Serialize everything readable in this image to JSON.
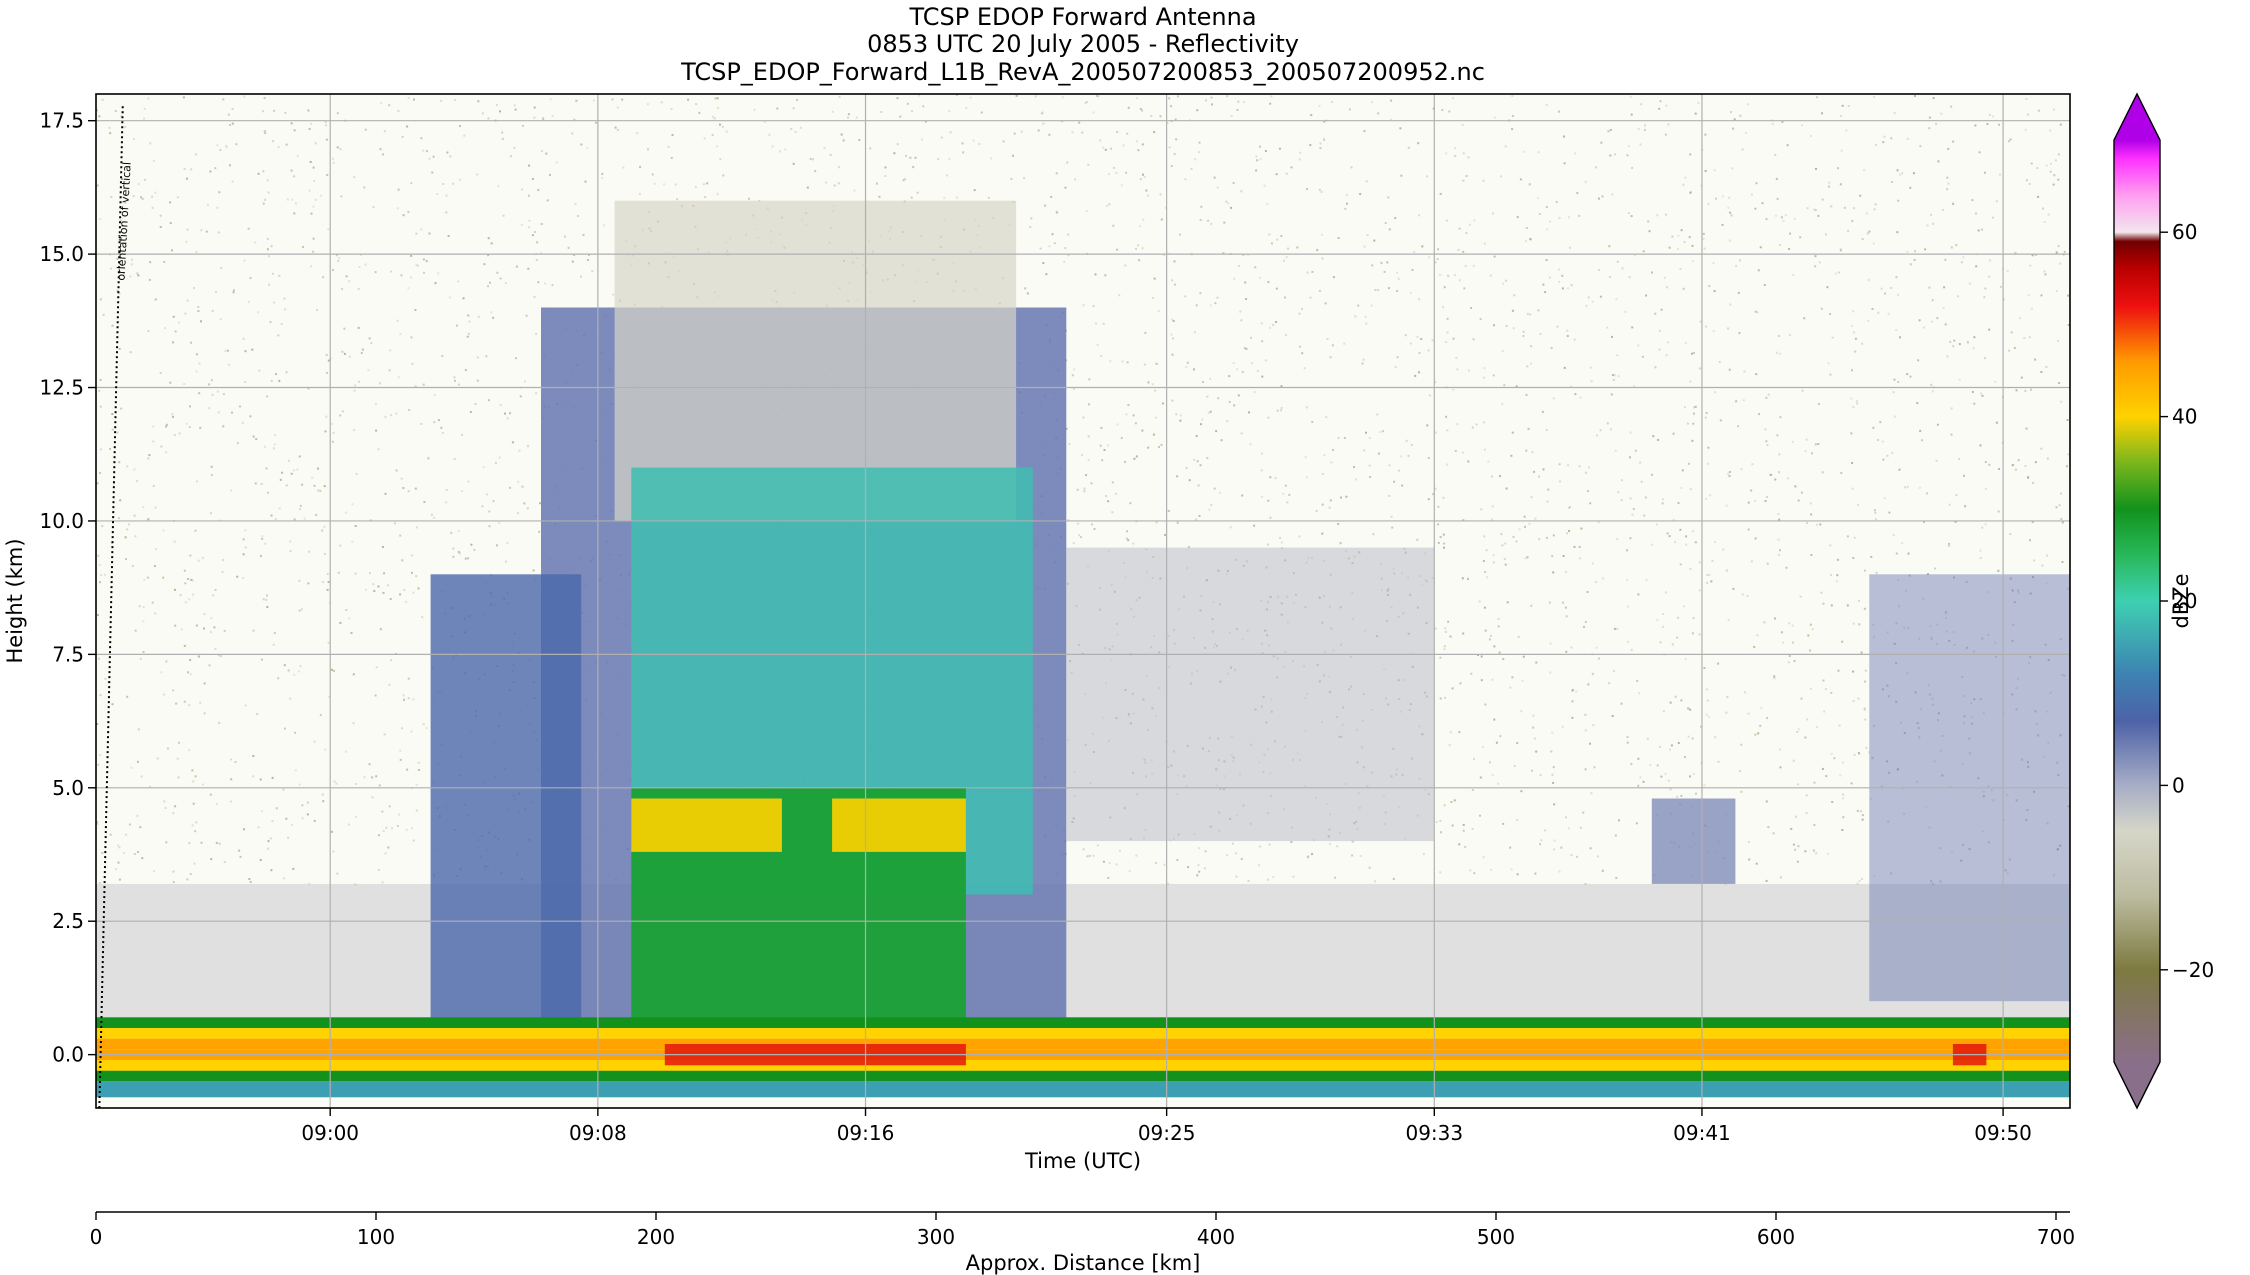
{
  "chart_data": {
    "type": "heatmap",
    "title": [
      "TCSP EDOP Forward Antenna",
      "0853 UTC 20 July 2005 - Reflectivity",
      "TCSP_EDOP_Forward_L1B_RevA_200507200853_200507200952.nc"
    ],
    "xlabel": "Time (UTC)",
    "ylabel": "Height (km)",
    "x_ticks": [
      "09:00",
      "09:08",
      "09:16",
      "09:25",
      "09:33",
      "09:41",
      "09:50"
    ],
    "x_tick_minutes": [
      7,
      15,
      23,
      32,
      40,
      48,
      57
    ],
    "x_range_minutes": [
      0,
      59
    ],
    "y_ticks": [
      0.0,
      2.5,
      5.0,
      7.5,
      10.0,
      12.5,
      15.0,
      17.5
    ],
    "y_tick_labels": [
      "0.0",
      "2.5",
      "5.0",
      "7.5",
      "10.0",
      "12.5",
      "15.0",
      "17.5"
    ],
    "ylim": [
      -1.0,
      18.0
    ],
    "grid": true,
    "annotation": "orientation of vertical",
    "colorbar": {
      "label": "dBZe",
      "ticks": [
        -20,
        0,
        20,
        40,
        60
      ],
      "tick_labels": [
        "−20",
        "0",
        "20",
        "40",
        "60"
      ],
      "range": [
        -30,
        70
      ],
      "extend": "both",
      "stops": [
        {
          "v": -30,
          "c": "#8a6f8a"
        },
        {
          "v": -20,
          "c": "#7d7a40"
        },
        {
          "v": -12,
          "c": "#bcbca0"
        },
        {
          "v": -5,
          "c": "#d6d6c8"
        },
        {
          "v": 0,
          "c": "#a6adc6"
        },
        {
          "v": 7,
          "c": "#4d62a8"
        },
        {
          "v": 12,
          "c": "#3d82b2"
        },
        {
          "v": 20,
          "c": "#3ed0b2"
        },
        {
          "v": 25,
          "c": "#28b85a"
        },
        {
          "v": 30,
          "c": "#12921c"
        },
        {
          "v": 35,
          "c": "#7ab61c"
        },
        {
          "v": 40,
          "c": "#ffd200"
        },
        {
          "v": 46,
          "c": "#ff9a00"
        },
        {
          "v": 52,
          "c": "#ee1010"
        },
        {
          "v": 56,
          "c": "#bb0000"
        },
        {
          "v": 59,
          "c": "#700000"
        },
        {
          "v": 60,
          "c": "#f2e6ee"
        },
        {
          "v": 64,
          "c": "#ff9ef0"
        },
        {
          "v": 68,
          "c": "#ff30ff"
        },
        {
          "v": 70,
          "c": "#b000e8"
        }
      ]
    },
    "secondary_axis": {
      "label": "Approx. Distance [km]",
      "ticks": [
        0,
        100,
        200,
        300,
        400,
        500,
        600,
        700
      ],
      "range": [
        0,
        705
      ]
    }
  }
}
